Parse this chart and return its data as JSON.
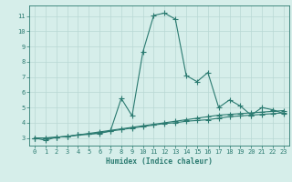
{
  "title": "",
  "xlabel": "Humidex (Indice chaleur)",
  "ylabel": "",
  "background_color": "#d6eeea",
  "line_color": "#2a7a70",
  "grid_color": "#b8d8d4",
  "xlim": [
    -0.5,
    23.5
  ],
  "ylim": [
    2.5,
    11.7
  ],
  "yticks": [
    3,
    4,
    5,
    6,
    7,
    8,
    9,
    10,
    11
  ],
  "xticks": [
    0,
    1,
    2,
    3,
    4,
    5,
    6,
    7,
    8,
    9,
    10,
    11,
    12,
    13,
    14,
    15,
    16,
    17,
    18,
    19,
    20,
    21,
    22,
    23
  ],
  "series1_x": [
    0,
    1,
    2,
    3,
    4,
    5,
    6,
    7,
    8,
    9,
    10,
    11,
    12,
    13,
    14,
    15,
    16,
    17,
    18,
    19,
    20,
    21,
    22,
    23
  ],
  "series1_y": [
    3.0,
    2.85,
    3.05,
    3.1,
    3.2,
    3.25,
    3.3,
    3.45,
    5.6,
    4.45,
    8.65,
    11.05,
    11.2,
    10.8,
    7.1,
    6.7,
    7.3,
    5.0,
    5.5,
    5.1,
    4.5,
    5.0,
    4.85,
    4.6
  ],
  "series2_x": [
    0,
    1,
    2,
    3,
    4,
    5,
    6,
    7,
    8,
    9,
    10,
    11,
    12,
    13,
    14,
    15,
    16,
    17,
    18,
    19,
    20,
    21,
    22,
    23
  ],
  "series2_y": [
    3.0,
    3.0,
    3.05,
    3.1,
    3.2,
    3.3,
    3.4,
    3.5,
    3.6,
    3.7,
    3.8,
    3.9,
    4.0,
    4.1,
    4.2,
    4.3,
    4.4,
    4.5,
    4.55,
    4.6,
    4.65,
    4.7,
    4.75,
    4.8
  ],
  "series3_x": [
    0,
    1,
    2,
    3,
    4,
    5,
    6,
    7,
    8,
    9,
    10,
    11,
    12,
    13,
    14,
    15,
    16,
    17,
    18,
    19,
    20,
    21,
    22,
    23
  ],
  "series3_y": [
    3.0,
    3.0,
    3.05,
    3.1,
    3.2,
    3.25,
    3.35,
    3.45,
    3.55,
    3.65,
    3.75,
    3.85,
    3.95,
    4.0,
    4.1,
    4.15,
    4.2,
    4.3,
    4.4,
    4.45,
    4.5,
    4.55,
    4.6,
    4.65
  ],
  "marker_size": 2.0,
  "line_width": 0.8,
  "xlabel_fontsize": 5.8,
  "tick_fontsize": 5.0
}
